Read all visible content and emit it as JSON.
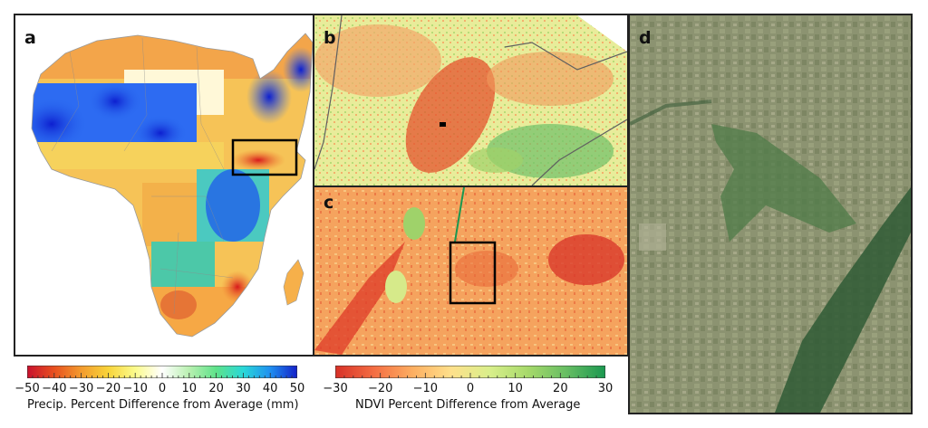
{
  "panels": {
    "a": {
      "letter": "a"
    },
    "b": {
      "letter": "b"
    },
    "c": {
      "letter": "c"
    },
    "d": {
      "letter": "d"
    }
  },
  "colorbars": {
    "precip": {
      "label": "Precip. Percent Difference from Average (mm)",
      "ticks": [
        "−50",
        "−40",
        "−30",
        "−20",
        "−10",
        "0",
        "10",
        "20",
        "30",
        "40",
        "50"
      ],
      "colors": [
        "#c8102e",
        "#e8501f",
        "#f39b2e",
        "#f8d43a",
        "#fbfb8c",
        "#ffffff",
        "#b8f0b0",
        "#5ee28a",
        "#29d8d8",
        "#1f8ff0",
        "#1420c8"
      ]
    },
    "ndvi": {
      "label": "NDVI Percent Difference from Average",
      "ticks": [
        "−30",
        "−20",
        "−10",
        "0",
        "10",
        "20",
        "30"
      ],
      "colors": [
        "#d73027",
        "#f46d43",
        "#fdae61",
        "#fee08b",
        "#d9ef8b",
        "#a6d96a",
        "#66bd63",
        "#1a9850"
      ]
    }
  }
}
